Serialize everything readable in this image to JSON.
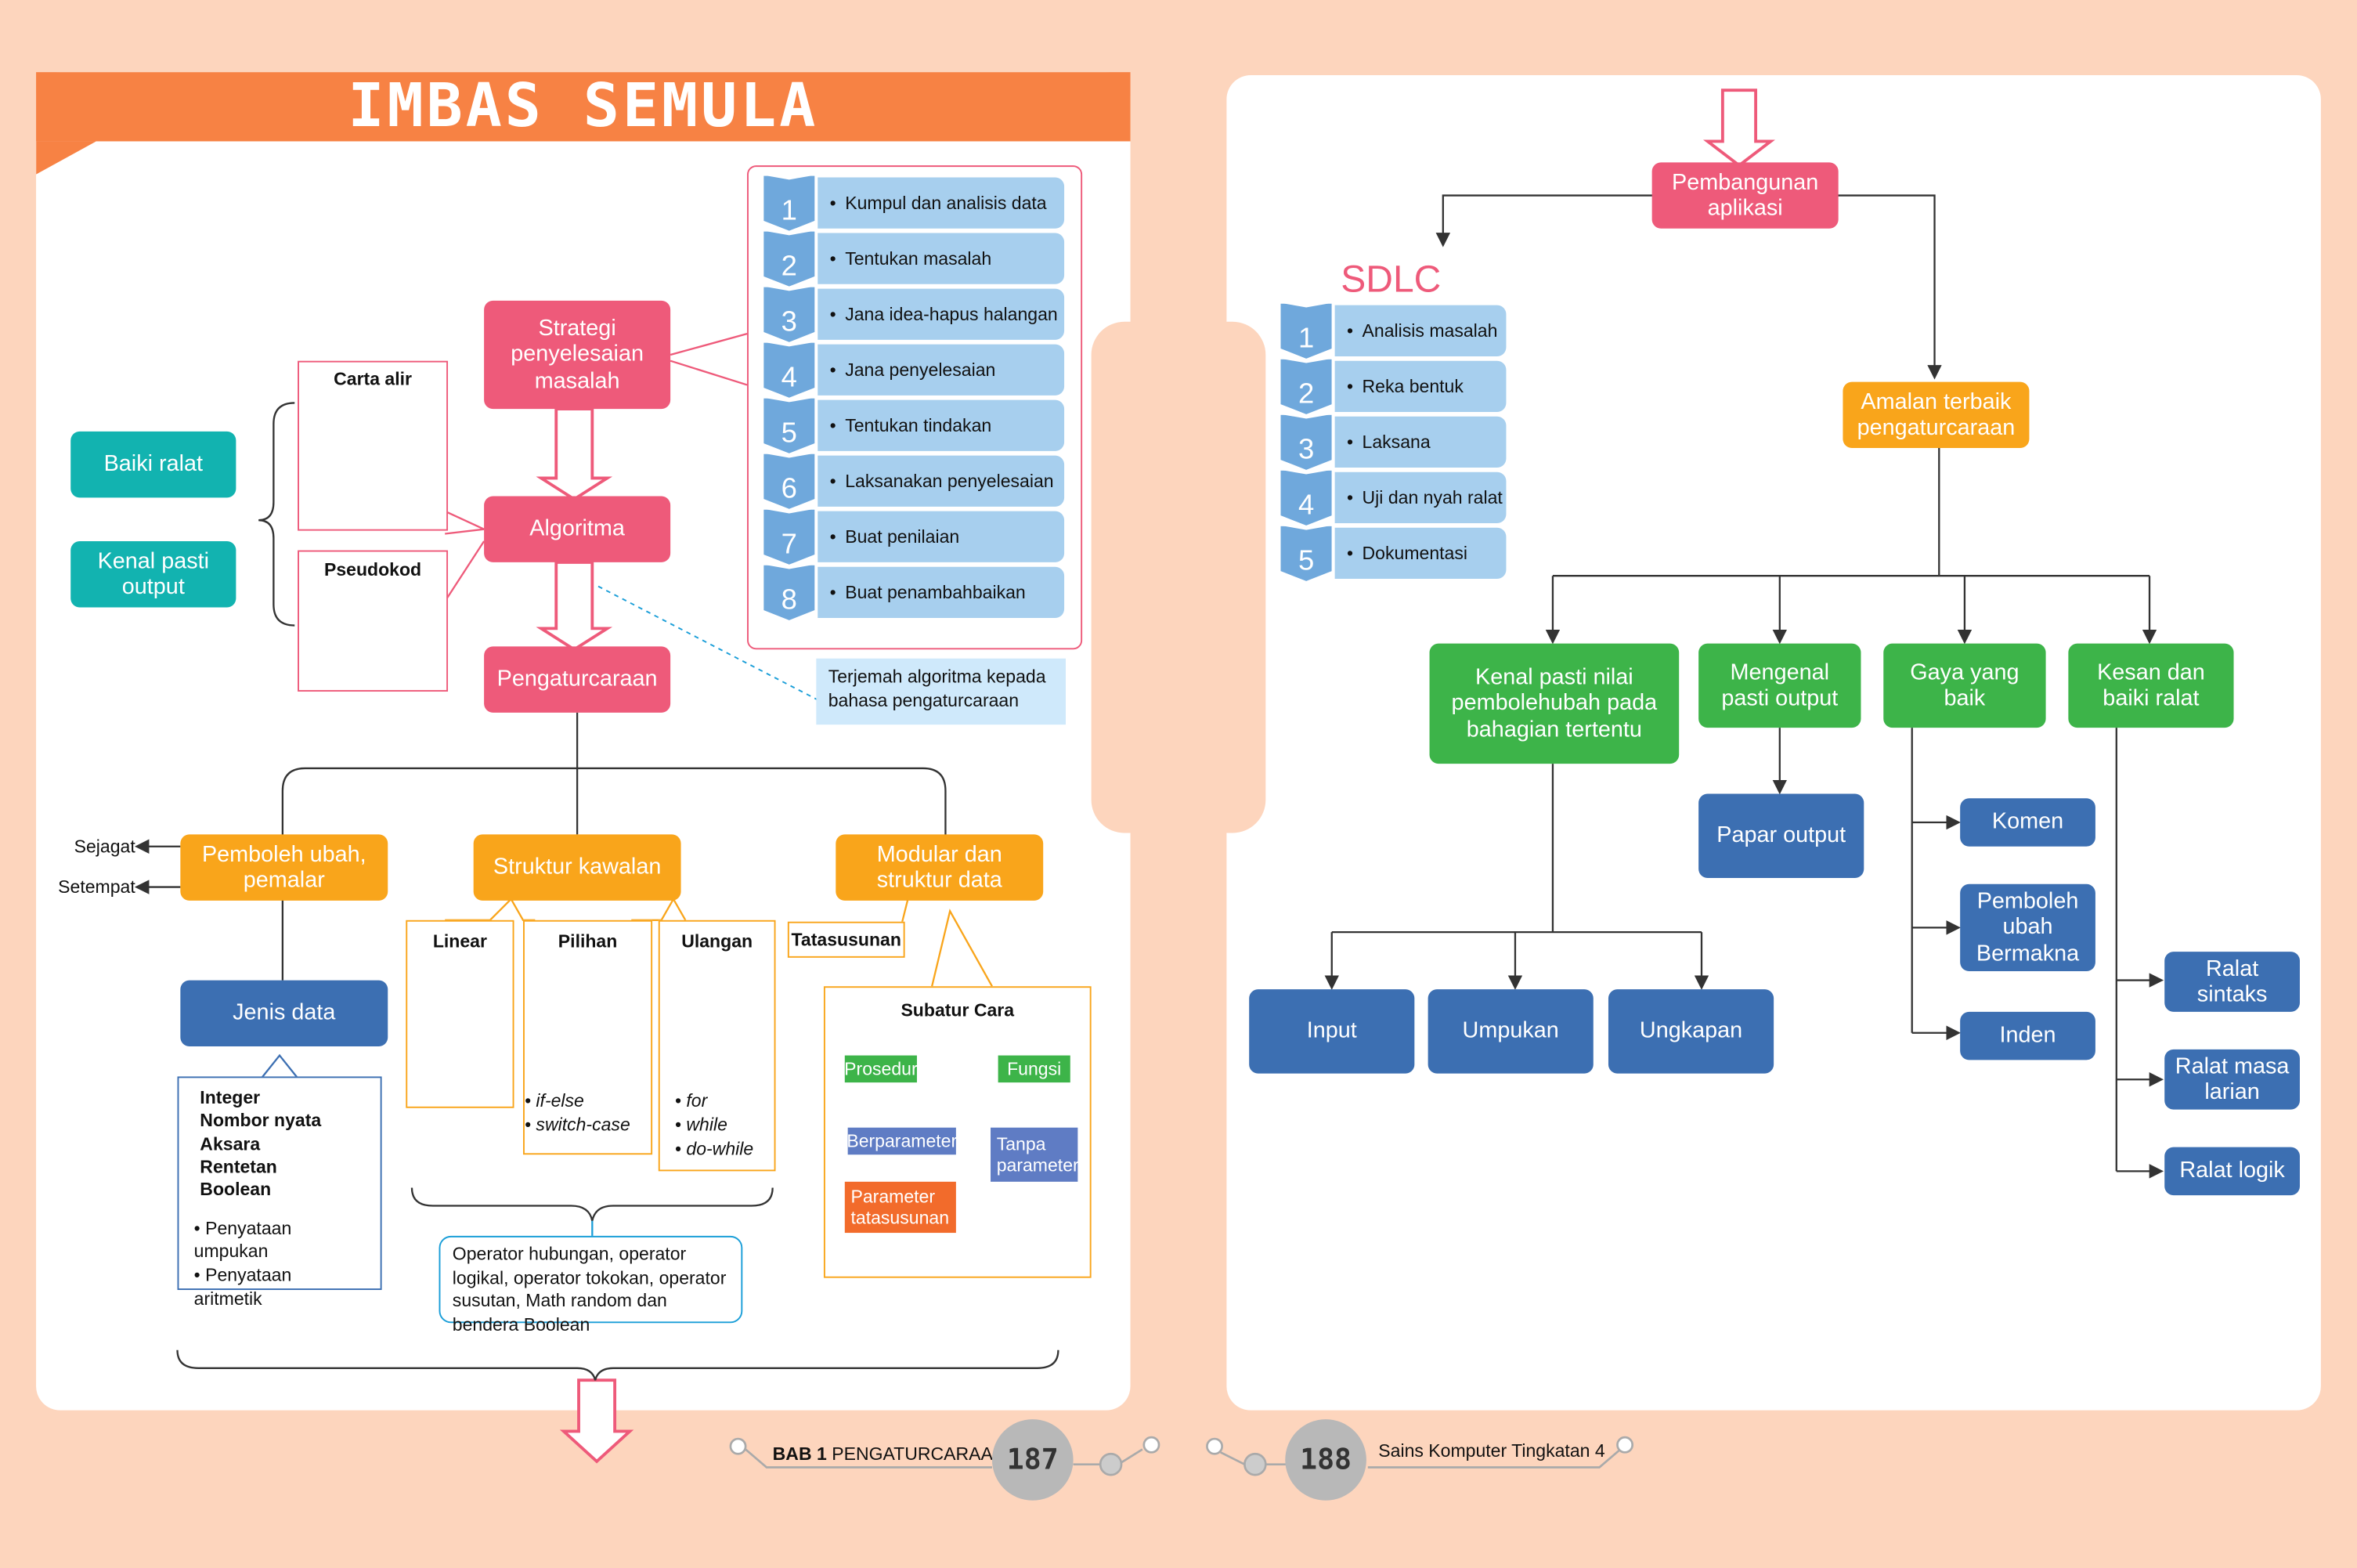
{
  "title": "IMBAS SEMULA",
  "left": {
    "strategi": "Strategi penyelesaian masalah",
    "algoritma": "Algoritma",
    "pengaturcaraan": "Pengaturcaraan",
    "baiki_ralat": "Baiki ralat",
    "kenal_pasti_output": "Kenal pasti output",
    "carta_alir": "Carta alir",
    "pseudokod": "Pseudokod",
    "steps": [
      {
        "num": "1",
        "label": "Kumpul dan analisis data"
      },
      {
        "num": "2",
        "label": "Tentukan masalah"
      },
      {
        "num": "3",
        "label": "Jana idea-hapus halangan"
      },
      {
        "num": "4",
        "label": "Jana penyelesaian"
      },
      {
        "num": "5",
        "label": "Tentukan tindakan"
      },
      {
        "num": "6",
        "label": "Laksanakan penyelesaian"
      },
      {
        "num": "7",
        "label": "Buat penilaian"
      },
      {
        "num": "8",
        "label": "Buat penambahbaikan"
      }
    ],
    "terjemah_note": "Terjemah algoritma kepada bahasa pengaturcaraan",
    "pemboleh_ubah": "Pemboleh ubah, pemalar",
    "sejagat": "Sejagat",
    "setempat": "Setempat",
    "struktur_kawalan": "Struktur kawalan",
    "modular": "Modular dan struktur data",
    "jenis_data": "Jenis data",
    "data_types": [
      "Integer",
      "Nombor nyata",
      "Aksara",
      "Rentetan",
      "Boolean"
    ],
    "statements": [
      "Penyataan umpukan",
      "Penyataan aritmetik"
    ],
    "linear": "Linear",
    "pilihan": "Pilihan",
    "pilihan_items": [
      "if-else",
      "switch-case"
    ],
    "ulangan": "Ulangan",
    "ulangan_items": [
      "for",
      "while",
      "do-while"
    ],
    "operator_note": "Operator hubungan, operator logikal, operator tokokan, operator susutan, Math random dan bendera Boolean",
    "tatasusunan": "Tatasusunan",
    "subatur_cara": "Subatur Cara",
    "prosedur": "Prosedur",
    "fungsi": "Fungsi",
    "berparameter": "Berparameter",
    "tanpa_parameter": "Tanpa parameter",
    "parameter_tatasusunan": "Parameter tatasusunan"
  },
  "right": {
    "pembangunan": "Pembangunan aplikasi",
    "sdlc": "SDLC",
    "sdlc_steps": [
      {
        "num": "1",
        "label": "Analisis masalah"
      },
      {
        "num": "2",
        "label": "Reka bentuk"
      },
      {
        "num": "3",
        "label": "Laksana"
      },
      {
        "num": "4",
        "label": "Uji dan nyah ralat"
      },
      {
        "num": "5",
        "label": "Dokumentasi"
      }
    ],
    "amalan": "Amalan terbaik pengaturcaraan",
    "kenal_pasti_nilai": "Kenal pasti nilai pembolehubah pada bahagian tertentu",
    "mengenal_pasti_output": "Mengenal pasti output",
    "gaya": "Gaya yang baik",
    "kesan": "Kesan dan baiki ralat",
    "papar_output": "Papar output",
    "input": "Input",
    "umpukan": "Umpukan",
    "ungkapan": "Ungkapan",
    "komen": "Komen",
    "pemboleh_ubah_bermakna": "Pemboleh ubah Bermakna",
    "inden": "Inden",
    "ralat_sintaks": "Ralat sintaks",
    "ralat_masa_larian": "Ralat masa larian",
    "ralat_logik": "Ralat logik"
  },
  "footer": {
    "left_bab": "BAB 1",
    "left_text": "PENGATURCARAAN",
    "left_page": "187",
    "right_page": "188",
    "right_text": "Sains Komputer Tingkatan 4"
  },
  "colors": {
    "pink": "#ee5a7a",
    "orange": "#f9a51b",
    "green": "#3db449",
    "blue": "#3c6fb2",
    "teal": "#12b3b0",
    "title_orange": "#f78244",
    "background": "#fdd5bd"
  }
}
